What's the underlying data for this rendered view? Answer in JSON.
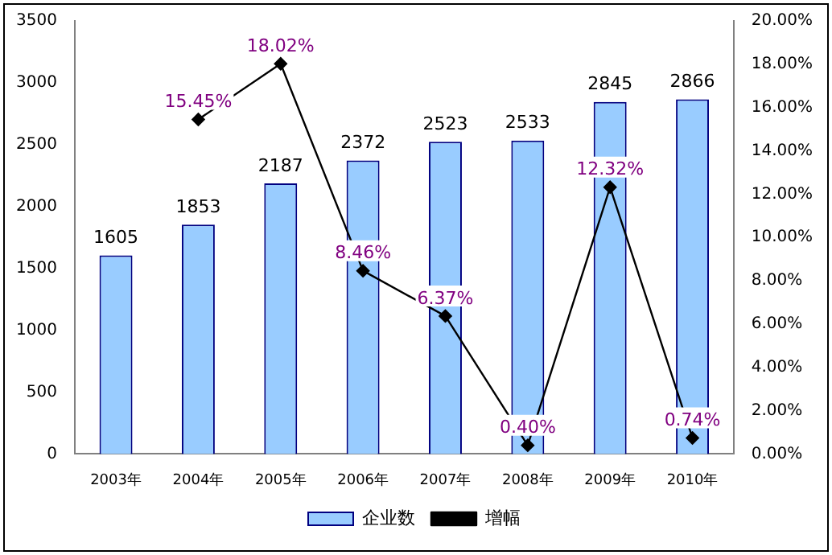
{
  "chart_data": {
    "type": "bar",
    "categories": [
      "2003年",
      "2004年",
      "2005年",
      "2006年",
      "2007年",
      "2008年",
      "2009年",
      "2010年"
    ],
    "series": [
      {
        "name": "企业数",
        "color": "#99ccff",
        "values": [
          1605,
          1853,
          2187,
          2372,
          2523,
          2533,
          2845,
          2866
        ],
        "value_labels": [
          "1605",
          "1853",
          "2187",
          "2372",
          "2523",
          "2533",
          "2845",
          "2866"
        ]
      },
      {
        "name": "增幅",
        "type": "line",
        "axis": "y2",
        "color": "#000000",
        "marker": "diamond",
        "values": [
          null,
          15.45,
          18.02,
          8.46,
          6.37,
          0.4,
          12.32,
          0.74
        ],
        "value_labels": [
          null,
          "15.45%",
          "18.02%",
          "8.46%",
          "6.37%",
          "0.40%",
          "12.32%",
          "0.74%"
        ]
      }
    ],
    "ylim": [
      0,
      3500
    ],
    "yticks": [
      0,
      500,
      1000,
      1500,
      2000,
      2500,
      3000,
      3500
    ],
    "y2lim": [
      0,
      20
    ],
    "y2ticks": [
      {
        "value": 0,
        "label": "0.00%"
      },
      {
        "value": 2,
        "label": "2.00%"
      },
      {
        "value": 4,
        "label": "4.00%"
      },
      {
        "value": 6,
        "label": "6.00%"
      },
      {
        "value": 8,
        "label": "8.00%"
      },
      {
        "value": 10,
        "label": "10.00%"
      },
      {
        "value": 12,
        "label": "12.00%"
      },
      {
        "value": 14,
        "label": "14.00%"
      },
      {
        "value": 16,
        "label": "16.00%"
      },
      {
        "value": 18,
        "label": "18.00%"
      },
      {
        "value": 20,
        "label": "20.00%"
      }
    ],
    "grid": false,
    "legend": "bottom"
  }
}
